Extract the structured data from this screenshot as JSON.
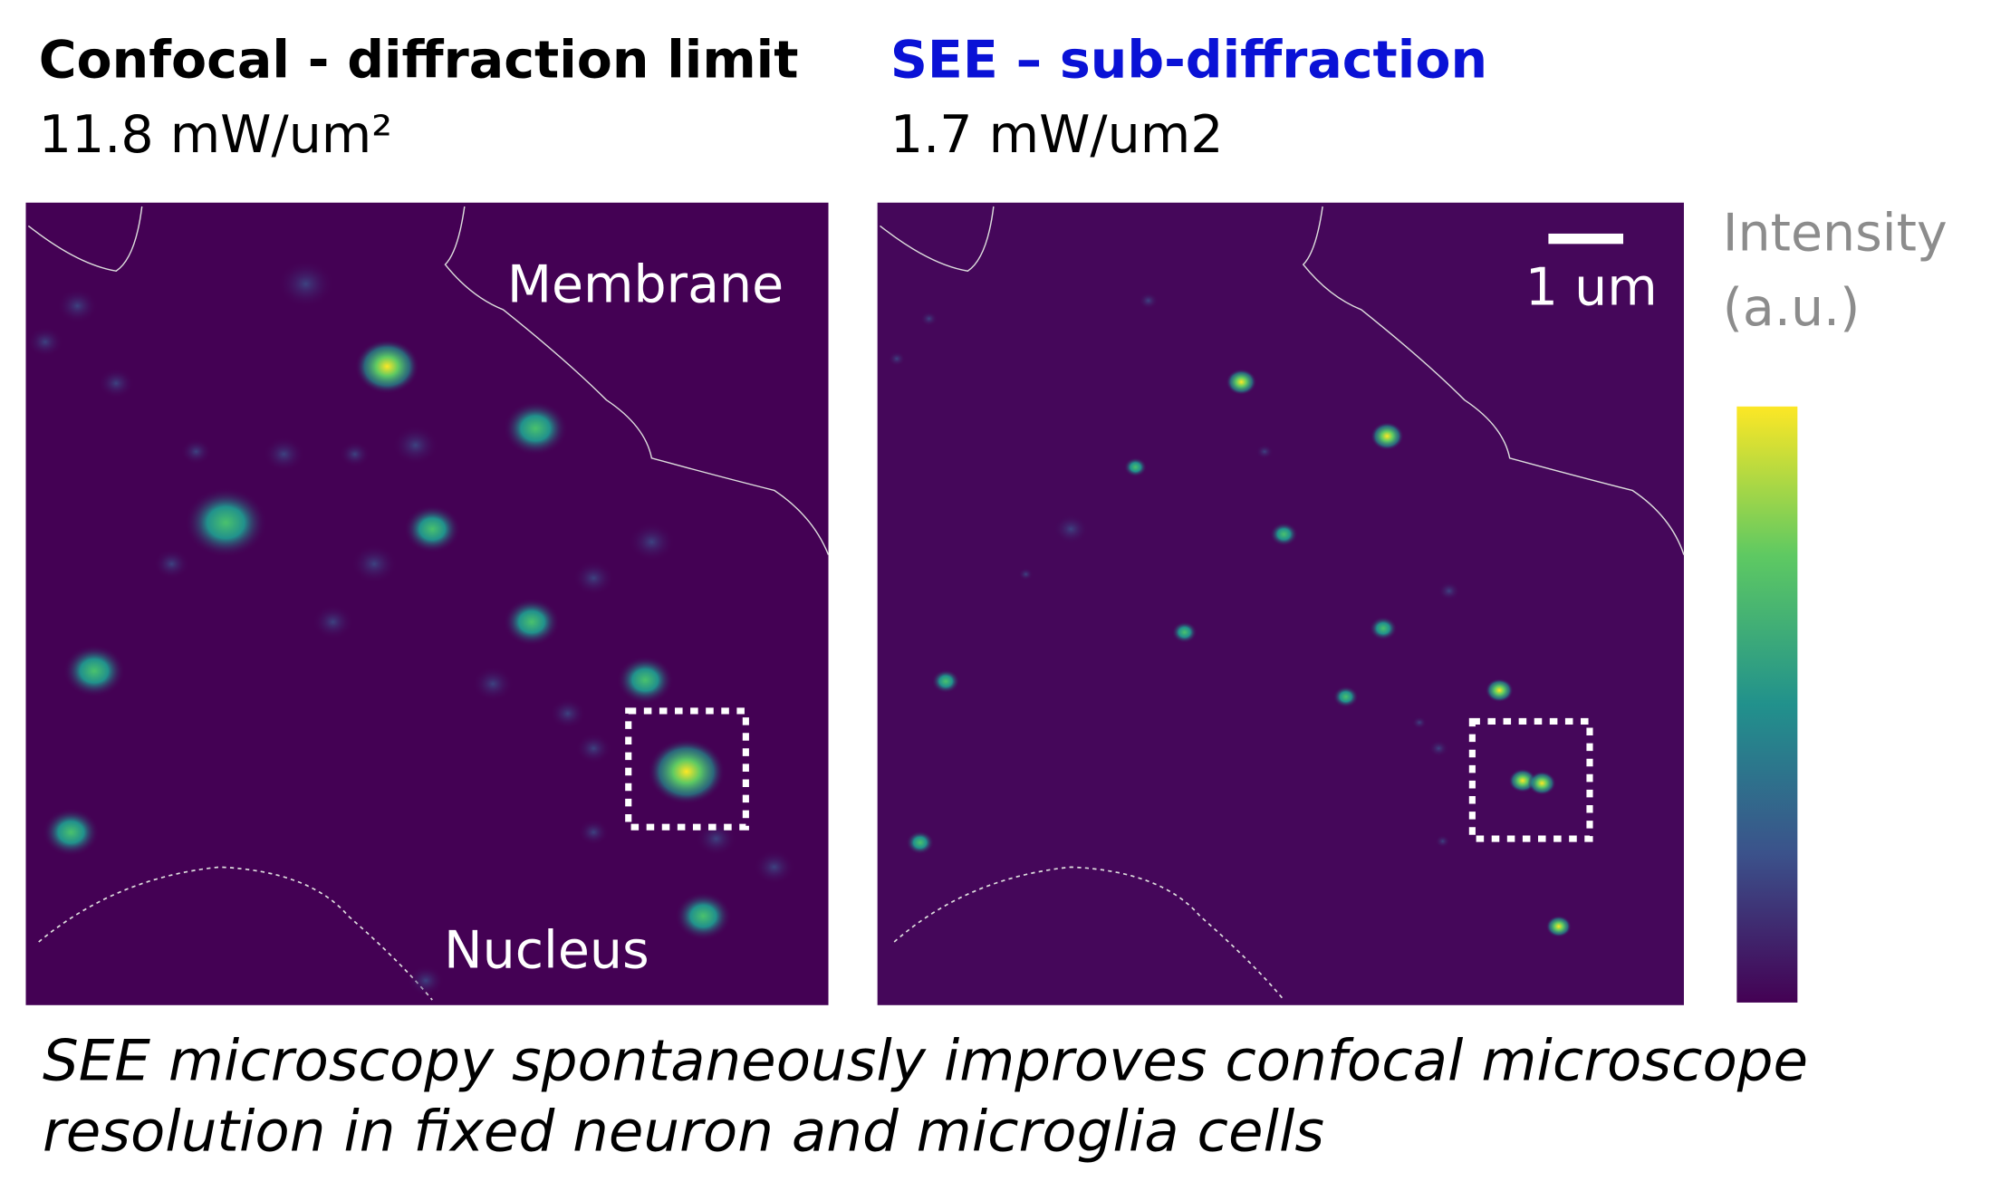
{
  "left": {
    "title": "Confocal - diffraction limit",
    "power": "11.8 mW/um²",
    "labels": [
      "Membrane",
      "Nucleus"
    ]
  },
  "right": {
    "title": "SEE – sub-diffraction",
    "power": "1.7 mW/um2",
    "scale_bar": "1 um"
  },
  "colorbar": {
    "label_lines": [
      "Intensity",
      "(a.u.)"
    ]
  },
  "caption": [
    "SEE microscopy spontaneously improves confocal microscope",
    "resolution in fixed neuron and microglia cells"
  ]
}
